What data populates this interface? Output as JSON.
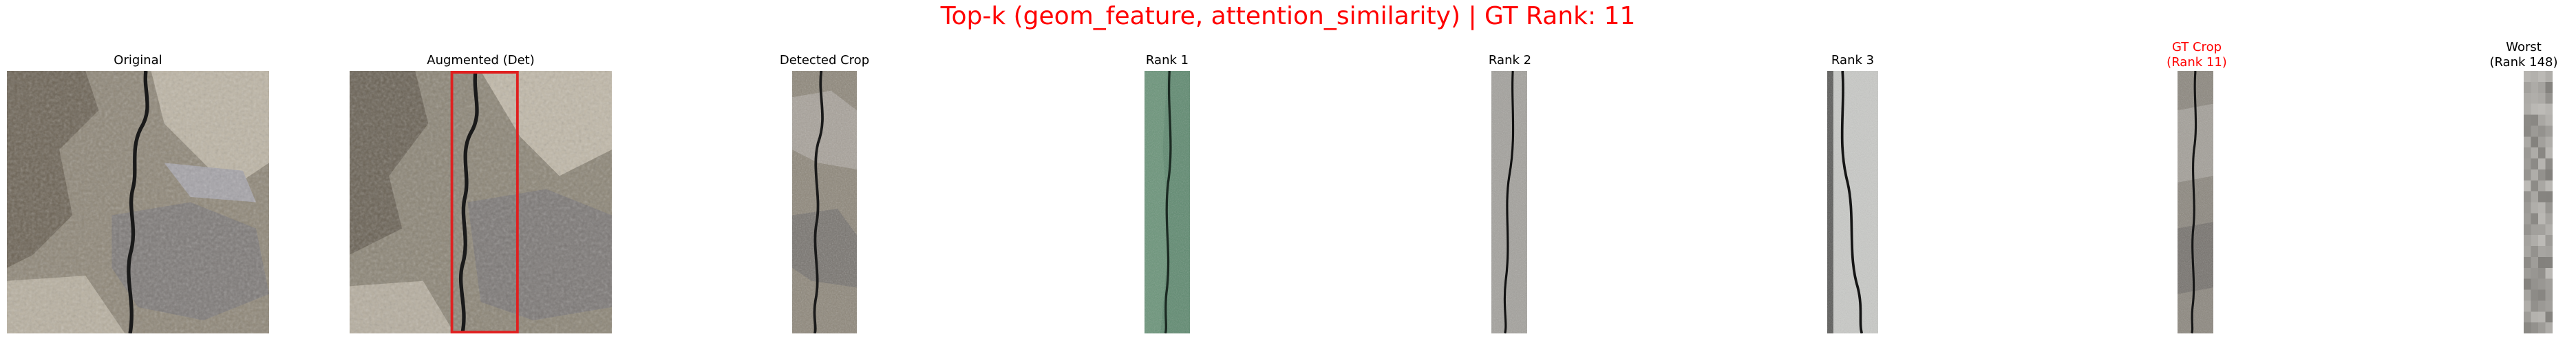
{
  "figure": {
    "title": "Top-k (geom_feature, attention_similarity) | GT Rank: 11",
    "title_color": "#ff0000"
  },
  "panels": [
    {
      "title": "Original",
      "image": "concrete-crack-photo"
    },
    {
      "title": "Augmented (Det)",
      "image": "concrete-crack-photo-with-detection-box",
      "box_color": "#e02020"
    },
    {
      "title": "Detected Crop",
      "image": "detected-crack-strip"
    },
    {
      "title": "Rank 1",
      "image": "green-surface-crack-strip"
    },
    {
      "title": "Rank 2",
      "image": "grey-surface-crack-strip"
    },
    {
      "title": "Rank 3",
      "image": "light-surface-crack-strip"
    },
    {
      "title_line1": "GT Crop",
      "title_line2": "(Rank 11)",
      "image": "ground-truth-crack-strip",
      "title_color": "#ff0000"
    },
    {
      "title_line1": "Worst",
      "title_line2": "(Rank 148)",
      "image": "pixelated-grey-strip"
    }
  ]
}
